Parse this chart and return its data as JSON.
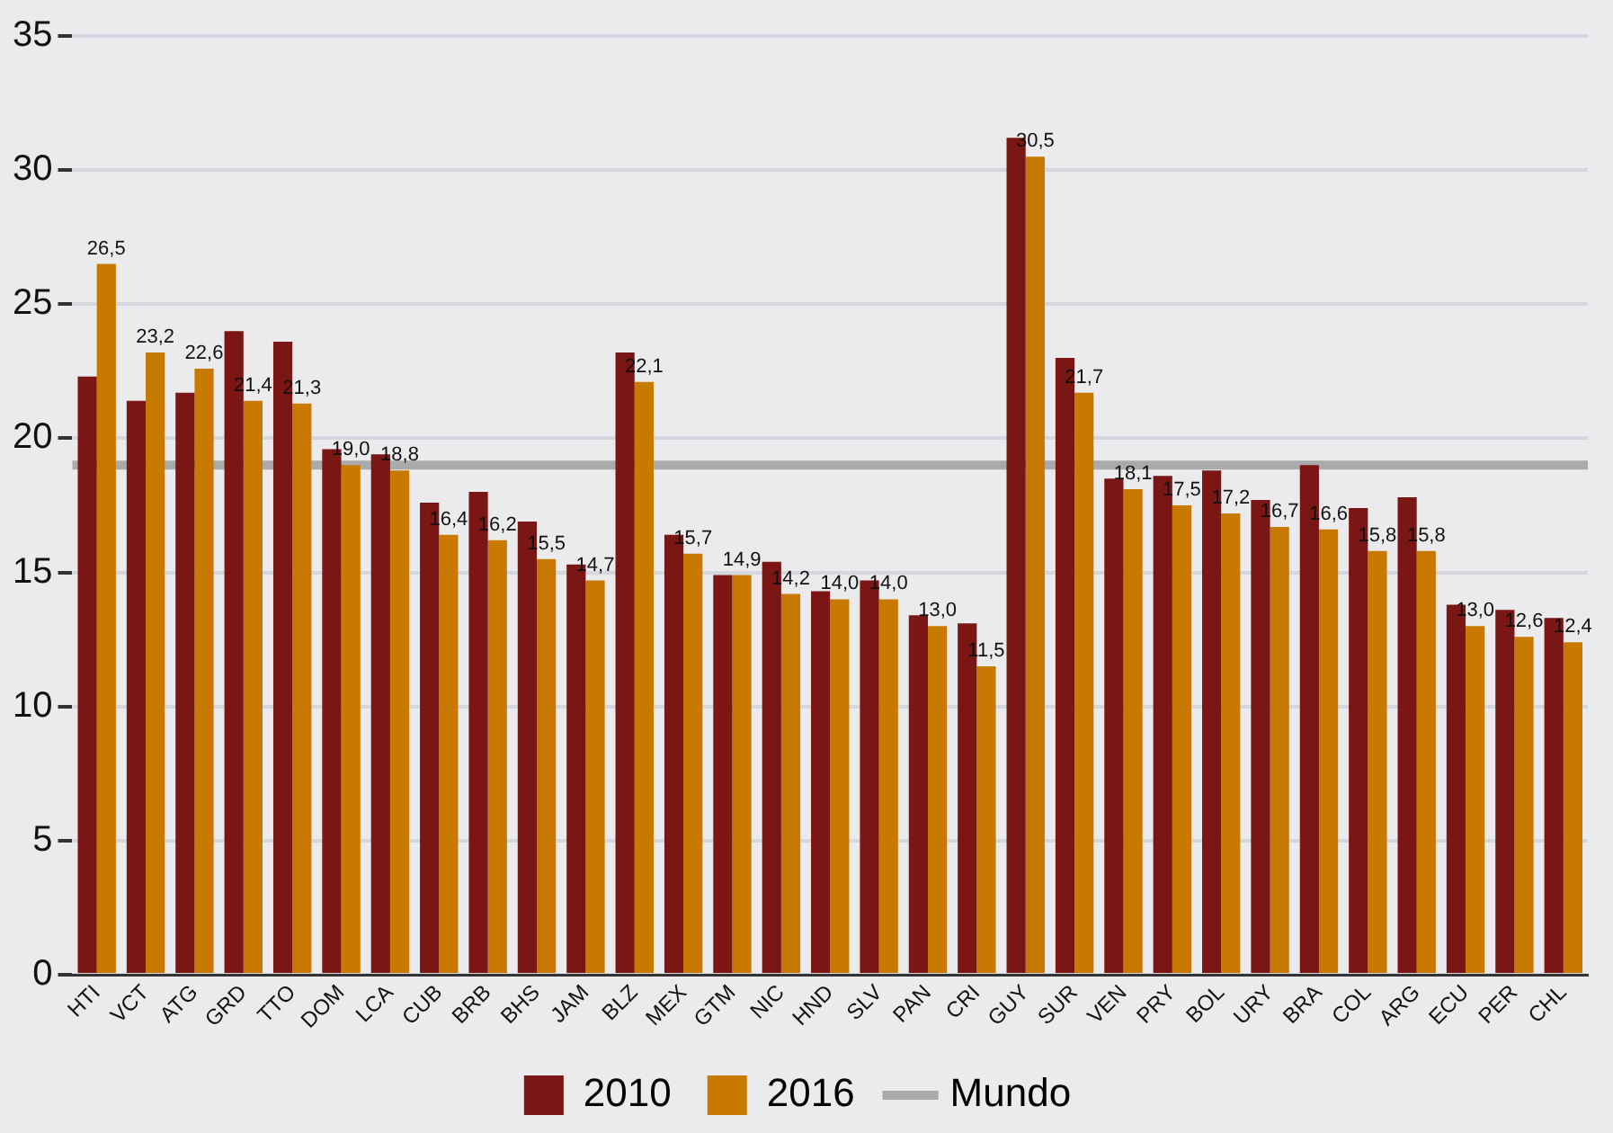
{
  "chart_data": {
    "type": "bar",
    "categories": [
      "HTI",
      "VCT",
      "ATG",
      "GRD",
      "TTO",
      "DOM",
      "LCA",
      "CUB",
      "BRB",
      "BHS",
      "JAM",
      "BLZ",
      "MEX",
      "GTM",
      "NIC",
      "HND",
      "SLV",
      "PAN",
      "CRI",
      "GUY",
      "SUR",
      "VEN",
      "PRY",
      "BOL",
      "URY",
      "BRA",
      "COL",
      "ARG",
      "ECU",
      "PER",
      "CHL"
    ],
    "series": [
      {
        "name": "2010",
        "color": "#7a1614",
        "values": [
          22.3,
          21.4,
          21.7,
          24.0,
          23.6,
          19.6,
          19.4,
          17.6,
          18.0,
          16.9,
          15.3,
          23.2,
          16.4,
          14.9,
          15.4,
          14.3,
          14.7,
          13.4,
          13.1,
          31.2,
          23.0,
          18.5,
          18.6,
          18.8,
          17.7,
          19.0,
          17.4,
          17.8,
          13.8,
          13.6,
          13.3
        ]
      },
      {
        "name": "2016",
        "color": "#c87a00",
        "values": [
          26.5,
          23.2,
          22.6,
          21.4,
          21.3,
          19.0,
          18.8,
          16.4,
          16.2,
          15.5,
          14.7,
          22.1,
          15.7,
          14.9,
          14.2,
          14.0,
          14.0,
          13.0,
          11.5,
          30.5,
          21.7,
          18.1,
          17.5,
          17.2,
          16.7,
          16.6,
          15.8,
          15.8,
          13.0,
          12.6,
          12.4
        ],
        "value_labels": [
          "26,5",
          "23,2",
          "22,6",
          "21,4",
          "21,3",
          "19,0",
          "18,8",
          "16,4",
          "16,2",
          "15,5",
          "14,7",
          "22,1",
          "15,7",
          "14,9",
          "14,2",
          "14,0",
          "14,0",
          "13,0",
          "11,5",
          "30,5",
          "21,7",
          "18,1",
          "17,5",
          "17,2",
          "16,7",
          "16,6",
          "15,8",
          "15,8",
          "13,0",
          "12,6",
          "12,4"
        ]
      }
    ],
    "ylim": [
      0,
      35
    ],
    "yticks": [
      0,
      5,
      10,
      15,
      20,
      25,
      30,
      35
    ],
    "grid": "y",
    "legend": "bottom",
    "ref_lines": [
      {
        "axis": "y",
        "value": 19.0,
        "label": "Mundo",
        "color": "#aaaaaa"
      }
    ]
  }
}
